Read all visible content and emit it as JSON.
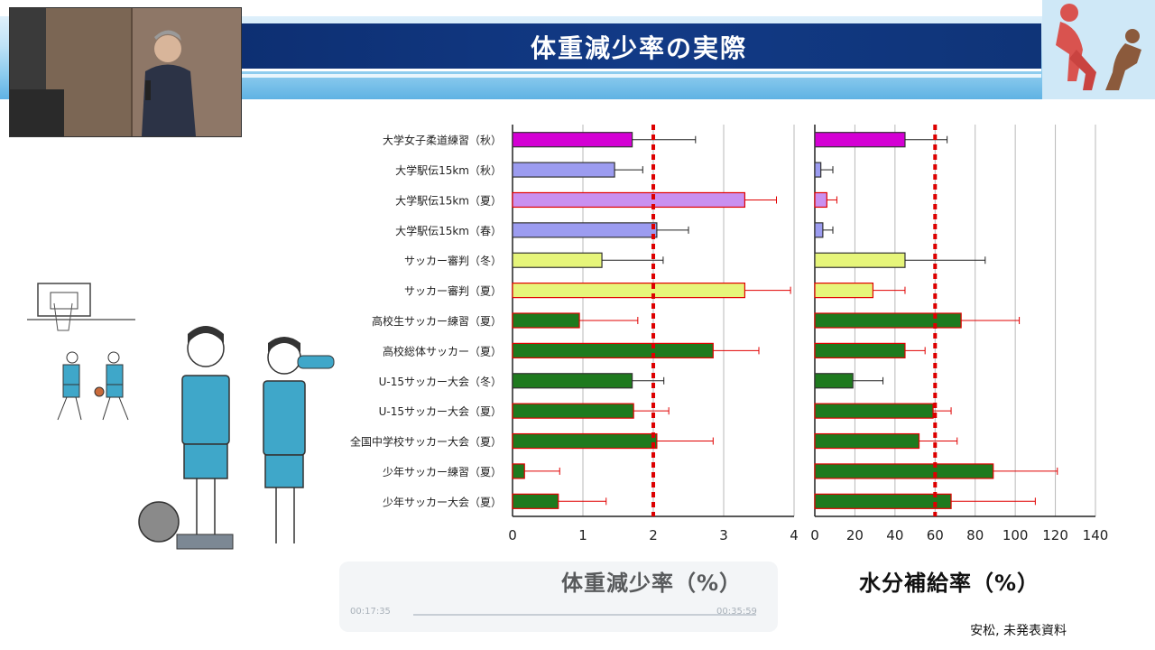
{
  "header": {
    "title": "体重減少率の実際"
  },
  "source_note": "安松, 未発表資料",
  "player": {
    "current_time": "00:17:35",
    "total_time": "00:35:59"
  },
  "colors": {
    "magenta": "#d400d4",
    "lavender": "#9c9cf0",
    "pink_lavender": "#c990f0",
    "yellow_green": "#e6f57a",
    "dark_green": "#1e7a1e",
    "outline_red": "#e00000",
    "outline_dark": "#333333",
    "reference_line": "#dd0000"
  },
  "chart_data": [
    {
      "type": "bar",
      "orientation": "horizontal",
      "xlabel": "体重減少率（%）",
      "xlim": [
        0,
        4
      ],
      "xticks": [
        "0",
        "1",
        "2",
        "3",
        "4"
      ],
      "reference_line": 2,
      "grid": true,
      "categories": [
        "大学女子柔道練習（秋）",
        "大学駅伝15km（秋）",
        "大学駅伝15km（夏）",
        "大学駅伝15km（春）",
        "サッカー審判（冬）",
        "サッカー審判（夏）",
        "高校生サッカー練習（夏）",
        "高校総体サッカー（夏）",
        "U-15サッカー大会（冬）",
        "U-15サッカー大会（夏）",
        "全国中学校サッカー大会（夏）",
        "少年サッカー練習（夏）",
        "少年サッカー大会（夏）"
      ],
      "values": [
        1.7,
        1.45,
        3.3,
        2.05,
        1.27,
        3.3,
        0.95,
        2.85,
        1.7,
        1.72,
        2.05,
        0.17,
        0.65
      ],
      "errors": [
        0.9,
        0.4,
        0.45,
        0.45,
        0.87,
        0.65,
        0.83,
        0.65,
        0.45,
        0.5,
        0.8,
        0.5,
        0.68
      ],
      "fills": [
        "magenta",
        "lavender",
        "pink_lavender",
        "lavender",
        "yellow_green",
        "yellow_green",
        "dark_green",
        "dark_green",
        "dark_green",
        "dark_green",
        "dark_green",
        "dark_green",
        "dark_green"
      ],
      "outlines": [
        "outline_dark",
        "outline_dark",
        "outline_red",
        "outline_dark",
        "outline_dark",
        "outline_red",
        "outline_red",
        "outline_red",
        "outline_dark",
        "outline_red",
        "outline_red",
        "outline_red",
        "outline_red"
      ]
    },
    {
      "type": "bar",
      "orientation": "horizontal",
      "xlabel": "水分補給率（%）",
      "xlim": [
        0,
        140
      ],
      "xticks": [
        "0",
        "20",
        "40",
        "60",
        "80",
        "100",
        "120",
        "140"
      ],
      "reference_line": 60,
      "grid": true,
      "values": [
        45,
        3,
        6,
        4,
        45,
        29,
        73,
        45,
        19,
        59,
        52,
        89,
        68
      ],
      "errors": [
        21,
        6,
        5,
        5,
        40,
        16,
        29,
        10,
        15,
        9,
        19,
        32,
        42
      ]
    }
  ]
}
